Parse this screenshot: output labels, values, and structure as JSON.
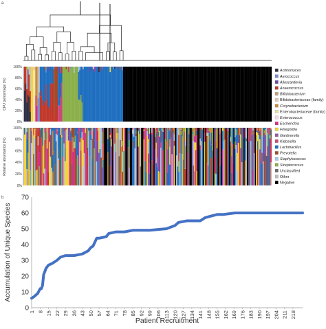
{
  "panels": {
    "a": "a",
    "b": "b"
  },
  "chart_data": [
    {
      "type": "bar",
      "subtype": "stacked-100-percent",
      "ylabel": "CFU percentage (%)",
      "yticks": [
        "0%",
        "20%",
        "40%",
        "60%",
        "80%",
        "100%"
      ],
      "ylim": [
        0,
        100
      ],
      "note": "Stacked per-patient composition; right portion entirely Negative"
    },
    {
      "type": "bar",
      "subtype": "stacked-100-percent",
      "ylabel": "Relative abundance (%)",
      "yticks": [
        "0%",
        "20%",
        "40%",
        "60%",
        "80%",
        "100%"
      ],
      "ylim": [
        0,
        100
      ]
    },
    {
      "type": "line",
      "xlabel": "Patient Recruitment",
      "ylabel": "Accumulation of Unique Species",
      "xticks": [
        "1",
        "8",
        "15",
        "22",
        "29",
        "36",
        "43",
        "50",
        "57",
        "64",
        "71",
        "78",
        "85",
        "92",
        "99",
        "106",
        "113",
        "120",
        "127",
        "134",
        "141",
        "148",
        "155",
        "162",
        "169",
        "176",
        "183",
        "190",
        "197",
        "204",
        "211",
        "218"
      ],
      "yticks": [
        "0",
        "10",
        "20",
        "30",
        "40",
        "50",
        "60",
        "70"
      ],
      "ylim": [
        0,
        70
      ],
      "xlim": [
        1,
        226
      ],
      "grid": false,
      "series": [
        {
          "color": "#4472c4",
          "x": [
            1,
            3,
            6,
            8,
            9,
            10,
            11,
            12,
            13,
            15,
            18,
            22,
            25,
            29,
            36,
            43,
            48,
            50,
            52,
            55,
            57,
            63,
            65,
            71,
            78,
            85,
            99,
            113,
            120,
            123,
            130,
            141,
            145,
            150,
            155,
            160,
            170,
            185,
            200,
            218,
            226
          ],
          "y": [
            6,
            7,
            9,
            12,
            12,
            14,
            21,
            23,
            25,
            27,
            28,
            30,
            32,
            33,
            33,
            34,
            36,
            38,
            39,
            44,
            44,
            45,
            47,
            48,
            48,
            49,
            49,
            50,
            52,
            54,
            55,
            55,
            57,
            58,
            59,
            59,
            60,
            60,
            60,
            60,
            60
          ]
        }
      ]
    }
  ],
  "legend": [
    {
      "label": "Actinomyces",
      "color": "#2f2f46",
      "italic": true
    },
    {
      "label": "Aerococcus",
      "color": "#7a8fc9",
      "italic": true
    },
    {
      "label": "Alloscardovia",
      "color": "#6b4aa6",
      "italic": true
    },
    {
      "label": "Anaerococcus",
      "color": "#c0392b",
      "italic": true
    },
    {
      "label": "Bifidobacterium",
      "color": "#c6a07a",
      "italic": true
    },
    {
      "label": "Bifidobacteriaceae (family)",
      "color": "#e7c8b0",
      "italic": false
    },
    {
      "label": "Corynebacterium",
      "color": "#c98b3a",
      "italic": true
    },
    {
      "label": "Enterobacteriaceae (family)",
      "color": "#efe3a8",
      "italic": false
    },
    {
      "label": "Enterococcus",
      "color": "#f4d9e3",
      "italic": true
    },
    {
      "label": "Escherichia",
      "color": "#d62f8a",
      "italic": true
    },
    {
      "label": "Finegoldia",
      "color": "#f6d23a",
      "italic": true
    },
    {
      "label": "Gardnerella",
      "color": "#9b5aa6",
      "italic": true
    },
    {
      "label": "Klebsiella",
      "color": "#c94a7a",
      "italic": true
    },
    {
      "label": "Lactobacillus",
      "color": "#1f6fc0",
      "italic": true
    },
    {
      "label": "Prevotella",
      "color": "#a04a2a",
      "italic": true
    },
    {
      "label": "Staphylococcus",
      "color": "#a8c8e8",
      "italic": true
    },
    {
      "label": "Streptococcus",
      "color": "#8bb04a",
      "italic": true
    },
    {
      "label": "Unclassified",
      "color": "#6a6a6a",
      "italic": false
    },
    {
      "label": "Other",
      "color": "#bdbdbd",
      "italic": false
    },
    {
      "label": "Negative",
      "color": "#000000",
      "italic": false
    }
  ]
}
